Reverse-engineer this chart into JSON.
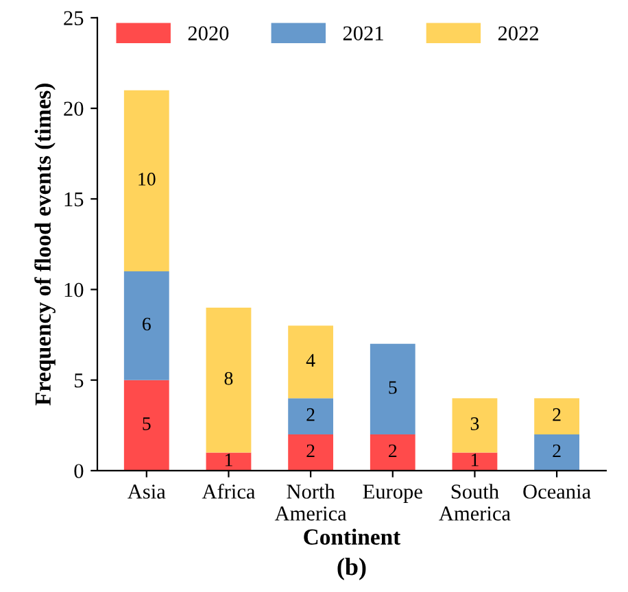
{
  "chart_data": {
    "type": "bar",
    "stacked": true,
    "xlabel": "Continent",
    "ylabel": "Frequency of flood events (times)",
    "categories": [
      "Asia",
      "Africa",
      "North\nAmerica",
      "Europe",
      "South\nAmerica",
      "Oceania"
    ],
    "series": [
      {
        "name": "2020",
        "color": "#ff4b4b",
        "values": [
          5,
          1,
          2,
          2,
          1,
          0
        ],
        "value_labels": [
          "5",
          "1",
          "2",
          "2",
          "1",
          null
        ]
      },
      {
        "name": "2021",
        "color": "#6699cc",
        "values": [
          6,
          0,
          2,
          5,
          0,
          2
        ],
        "value_labels": [
          "6",
          null,
          "2",
          "5",
          null,
          "2"
        ]
      },
      {
        "name": "2022",
        "color": "#ffd35c",
        "values": [
          10,
          8,
          4,
          0,
          3,
          2
        ],
        "value_labels": [
          "10",
          "8",
          "4",
          null,
          "3",
          "2"
        ]
      }
    ],
    "ylim": [
      0,
      25
    ],
    "yticks": [
      0,
      5,
      10,
      15,
      20,
      25
    ],
    "grid": false,
    "legend": "top left",
    "annotations": [
      "(b)"
    ]
  }
}
